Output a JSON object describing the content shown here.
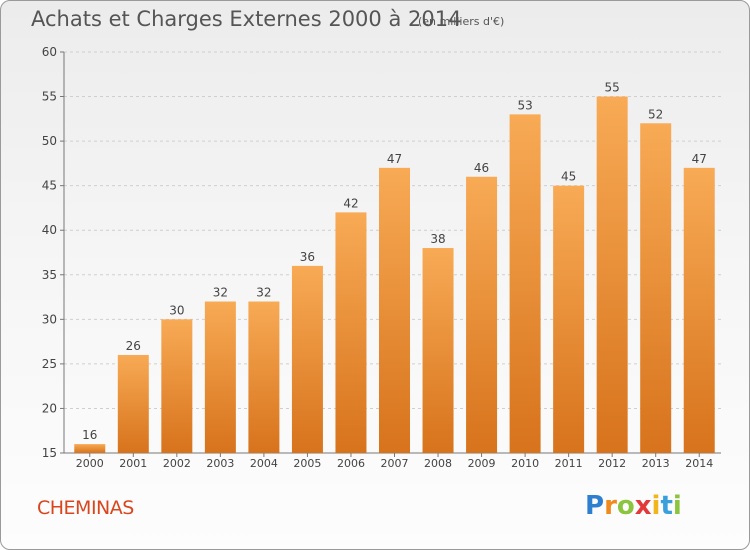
{
  "title": "Achats et Charges Externes 2000 à 2014",
  "subtitle": "(en milliers d'€)",
  "commune": "CHEMINAS",
  "logo": {
    "text": "Proxiti",
    "letters": [
      "P",
      "r",
      "o",
      "x",
      "i",
      "t",
      "i"
    ],
    "colors": [
      "#2f7fd0",
      "#f08a1c",
      "#8bc43f",
      "#e23a3a",
      "#f2b51c",
      "#3aa0dc",
      "#8bc43f"
    ]
  },
  "colors": {
    "bar_light": "#f8aa55",
    "bar_dark": "#d7731c",
    "title": "#555555",
    "commune": "#d9461e"
  },
  "chart_data": {
    "type": "bar",
    "title": "Achats et Charges Externes 2000 à 2014",
    "subtitle": "(en milliers d'€)",
    "categories": [
      "2000",
      "2001",
      "2002",
      "2003",
      "2004",
      "2005",
      "2006",
      "2007",
      "2008",
      "2009",
      "2010",
      "2011",
      "2012",
      "2013",
      "2014"
    ],
    "values": [
      16,
      26,
      30,
      32,
      32,
      36,
      42,
      47,
      38,
      46,
      53,
      45,
      55,
      52,
      47
    ],
    "ylim": [
      15,
      60
    ],
    "yticks": [
      15,
      20,
      25,
      30,
      35,
      40,
      45,
      50,
      55,
      60
    ],
    "grid": true
  }
}
